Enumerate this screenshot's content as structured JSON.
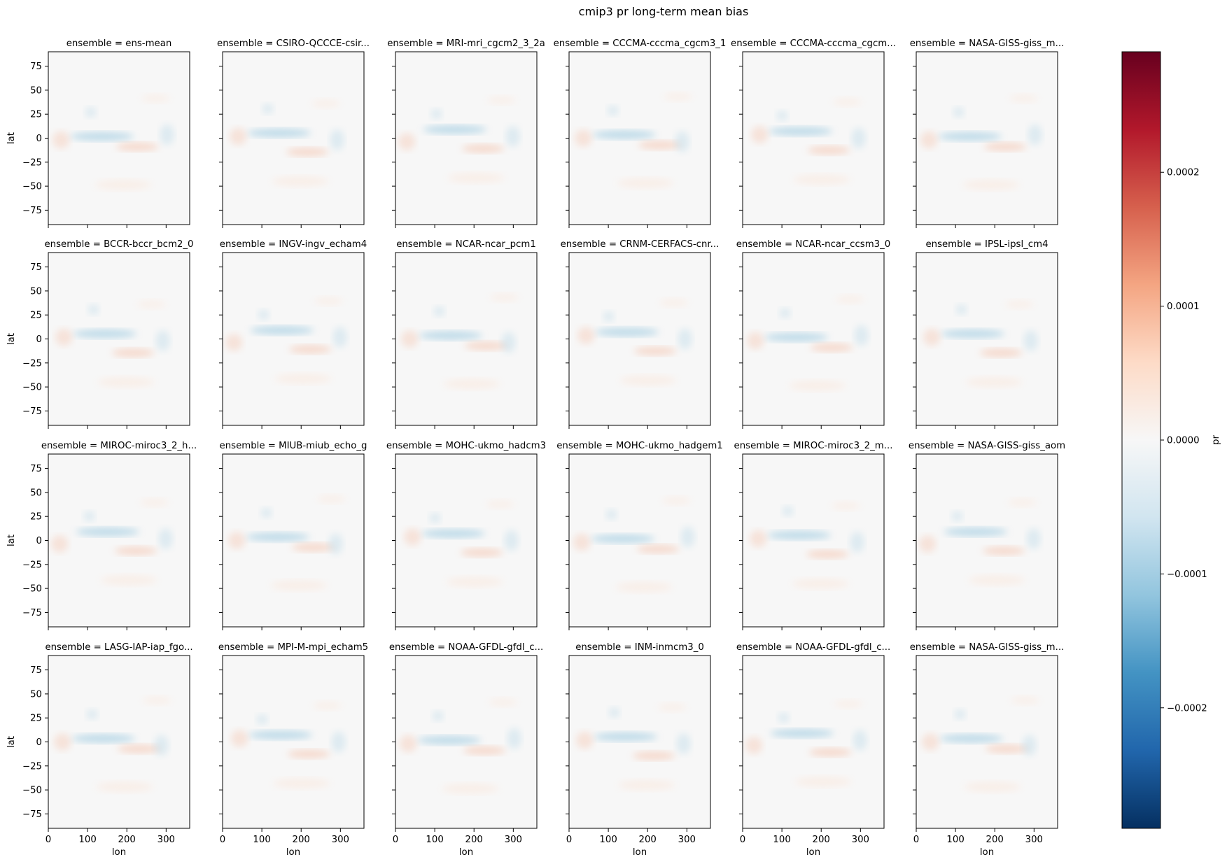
{
  "chart_data": {
    "type": "heatmap",
    "title": "cmip3 pr long-term mean bias",
    "facet_label_prefix": "ensemble = ",
    "panels": [
      {
        "label": "ensemble = ens-mean",
        "ensemble": "ens-mean"
      },
      {
        "label": "ensemble = CSIRO-QCCCE-csir...",
        "ensemble": "CSIRO-QCCCE-csir..."
      },
      {
        "label": "ensemble = MRI-mri_cgcm2_3_2a",
        "ensemble": "MRI-mri_cgcm2_3_2a"
      },
      {
        "label": "ensemble = CCCMA-cccma_cgcm3_1",
        "ensemble": "CCCMA-cccma_cgcm3_1"
      },
      {
        "label": "ensemble = CCCMA-cccma_cgcm...",
        "ensemble": "CCCMA-cccma_cgcm..."
      },
      {
        "label": "ensemble = NASA-GISS-giss_m...",
        "ensemble": "NASA-GISS-giss_m..."
      },
      {
        "label": "ensemble = BCCR-bccr_bcm2_0",
        "ensemble": "BCCR-bccr_bcm2_0"
      },
      {
        "label": "ensemble = INGV-ingv_echam4",
        "ensemble": "INGV-ingv_echam4"
      },
      {
        "label": "ensemble = NCAR-ncar_pcm1",
        "ensemble": "NCAR-ncar_pcm1"
      },
      {
        "label": "ensemble = CRNM-CERFACS-cnr...",
        "ensemble": "CRNM-CERFACS-cnr..."
      },
      {
        "label": "ensemble = NCAR-ncar_ccsm3_0",
        "ensemble": "NCAR-ncar_ccsm3_0"
      },
      {
        "label": "ensemble = IPSL-ipsl_cm4",
        "ensemble": "IPSL-ipsl_cm4"
      },
      {
        "label": "ensemble = MIROC-miroc3_2_h...",
        "ensemble": "MIROC-miroc3_2_h..."
      },
      {
        "label": "ensemble = MIUB-miub_echo_g",
        "ensemble": "MIUB-miub_echo_g"
      },
      {
        "label": "ensemble = MOHC-ukmo_hadcm3",
        "ensemble": "MOHC-ukmo_hadcm3"
      },
      {
        "label": "ensemble = MOHC-ukmo_hadgem1",
        "ensemble": "MOHC-ukmo_hadgem1"
      },
      {
        "label": "ensemble = MIROC-miroc3_2_m...",
        "ensemble": "MIROC-miroc3_2_m..."
      },
      {
        "label": "ensemble = NASA-GISS-giss_aom",
        "ensemble": "NASA-GISS-giss_aom"
      },
      {
        "label": "ensemble = LASG-IAP-iap_fgo...",
        "ensemble": "LASG-IAP-iap_fgo..."
      },
      {
        "label": "ensemble = MPI-M-mpi_echam5",
        "ensemble": "MPI-M-mpi_echam5"
      },
      {
        "label": "ensemble = NOAA-GFDL-gfdl_c...",
        "ensemble": "NOAA-GFDL-gfdl_c..."
      },
      {
        "label": "ensemble = INM-inmcm3_0",
        "ensemble": "INM-inmcm3_0"
      },
      {
        "label": "ensemble = NOAA-GFDL-gfdl_c...",
        "ensemble": "NOAA-GFDL-gfdl_c..."
      },
      {
        "label": "ensemble = NASA-GISS-giss_m...",
        "ensemble": "NASA-GISS-giss_m..."
      }
    ],
    "ncols": 6,
    "nrows": 4,
    "xlabel": "lon",
    "ylabel": "lat",
    "x_ticks": [
      0,
      100,
      200,
      300
    ],
    "x_tick_labels": [
      "0",
      "100",
      "200",
      "300"
    ],
    "y_ticks": [
      75,
      50,
      25,
      0,
      -25,
      -50,
      -75
    ],
    "y_tick_labels": [
      "75",
      "50",
      "25",
      "0",
      "−25",
      "−50",
      "−75"
    ],
    "xlim": [
      0,
      360
    ],
    "ylim": [
      -90,
      90
    ],
    "colorbar": {
      "label": "pr",
      "colormap": "RdBu_r",
      "vmin": -0.00029,
      "vmax": 0.00029,
      "ticks": [
        0.0002,
        0.0001,
        0.0,
        -0.0001,
        -0.0002
      ],
      "tick_labels": [
        "0.0002",
        "0.0001",
        "0.0000",
        "−0.0001",
        "−0.0002"
      ]
    },
    "grid": false
  }
}
